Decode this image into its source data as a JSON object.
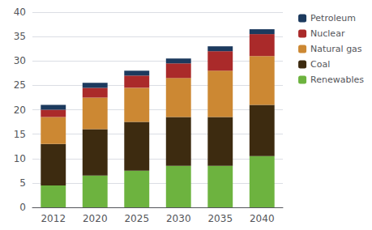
{
  "chart_data": {
    "type": "bar",
    "categories": [
      "2012",
      "2020",
      "2025",
      "2030",
      "2035",
      "2040"
    ],
    "series": [
      {
        "name": "Renewables",
        "color": "#6db33f",
        "values": [
          4.5,
          6.5,
          7.5,
          8.5,
          8.5,
          10.5
        ]
      },
      {
        "name": "Coal",
        "color": "#3d2b10",
        "values": [
          8.5,
          9.5,
          10.0,
          10.0,
          10.0,
          10.5
        ]
      },
      {
        "name": "Natural gas",
        "color": "#cc8833",
        "values": [
          5.5,
          6.5,
          7.0,
          8.0,
          9.5,
          10.0
        ]
      },
      {
        "name": "Nuclear",
        "color": "#aa2a2a",
        "values": [
          1.5,
          2.0,
          2.5,
          3.0,
          4.0,
          4.5
        ]
      },
      {
        "name": "Petroleum",
        "color": "#1c3a5e",
        "values": [
          1.0,
          1.0,
          1.0,
          1.0,
          1.0,
          1.0
        ]
      }
    ],
    "stacked": true,
    "ylim": [
      0,
      40
    ],
    "yticks": [
      0,
      5,
      10,
      15,
      20,
      25,
      30,
      35,
      40
    ],
    "grid": true,
    "legend": "right"
  }
}
